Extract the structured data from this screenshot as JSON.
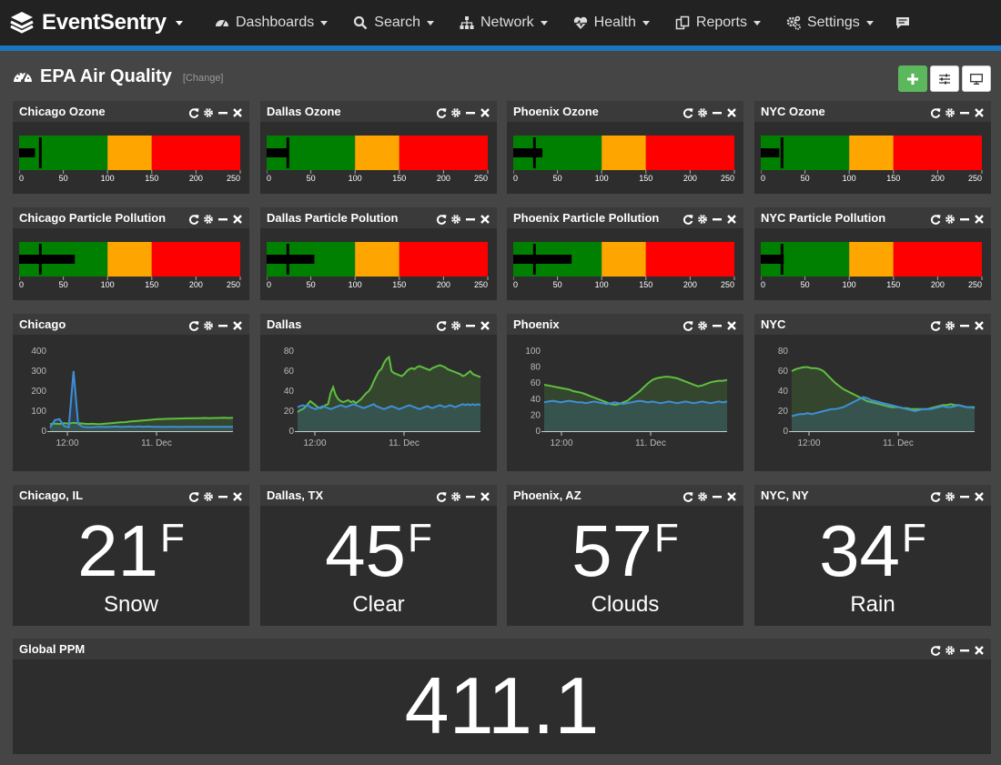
{
  "brand": {
    "name": "EventSentry"
  },
  "nav": {
    "items": [
      {
        "label": "Dashboards",
        "icon": "dashboard-icon"
      },
      {
        "label": "Search",
        "icon": "search-icon"
      },
      {
        "label": "Network",
        "icon": "network-icon"
      },
      {
        "label": "Health",
        "icon": "heartbeat-icon"
      },
      {
        "label": "Reports",
        "icon": "reports-icon"
      },
      {
        "label": "Settings",
        "icon": "settings-icon"
      }
    ],
    "chat_icon": "chat-icon"
  },
  "page": {
    "title": "EPA Air Quality",
    "change_label": "[Change]"
  },
  "colors": {
    "accent": "#1b75bc",
    "good": "#008000",
    "moderate": "#ffa500",
    "unhealthy": "#ff0000",
    "series_green": "#5fbf3f",
    "series_blue": "#3f8fd7"
  },
  "gauge_scale": {
    "ticks": [
      "0",
      "50",
      "100",
      "150",
      "200",
      "250"
    ],
    "min": 0,
    "max": 250,
    "bands": [
      [
        0,
        100,
        "good"
      ],
      [
        100,
        150,
        "moderate"
      ],
      [
        150,
        250,
        "unhealthy"
      ]
    ]
  },
  "ozone": [
    {
      "title": "Chicago Ozone",
      "value": 18,
      "target": 24
    },
    {
      "title": "Dallas Ozone",
      "value": 25,
      "target": 24
    },
    {
      "title": "Phoenix Ozone",
      "value": 33,
      "target": 24
    },
    {
      "title": "NYC Ozone",
      "value": 21,
      "target": 24
    }
  ],
  "particle": [
    {
      "title": "Chicago Particle Pollution",
      "value": 63,
      "target": 24
    },
    {
      "title": "Dallas Particle Polution",
      "value": 54,
      "target": 24
    },
    {
      "title": "Phoenix Particle Pollution",
      "value": 66,
      "target": 24
    },
    {
      "title": "NYC Particle Pollution",
      "value": 26,
      "target": 24
    }
  ],
  "charts": [
    {
      "title": "Chicago",
      "chart_data": {
        "type": "area",
        "y_ticks": [
          "0",
          "100",
          "200",
          "300",
          "400"
        ],
        "ylim": [
          0,
          400
        ],
        "x_ticks": [
          "12:00",
          "11. Dec"
        ],
        "series": [
          {
            "values": [
              35,
              38,
              36,
              40,
              38,
              42,
              40,
              38,
              36,
              37,
              35,
              36,
              38,
              40,
              42,
              44,
              45,
              48,
              50,
              52,
              54,
              56,
              58,
              60,
              60,
              62,
              62,
              63,
              63,
              64,
              64,
              65,
              65,
              66,
              65,
              66,
              66,
              67,
              66,
              67
            ]
          },
          {
            "values": [
              18,
              55,
              60,
              25,
              20,
              300,
              35,
              22,
              20,
              20,
              21,
              22,
              21,
              22,
              23,
              22,
              22,
              23,
              22,
              23,
              22,
              23,
              22,
              22,
              21,
              22,
              22,
              22,
              21,
              22,
              22,
              22,
              22,
              22,
              22,
              22,
              22,
              22,
              22,
              22
            ]
          }
        ]
      }
    },
    {
      "title": "Dallas",
      "chart_data": {
        "type": "area",
        "y_ticks": [
          "0",
          "20",
          "40",
          "60",
          "80"
        ],
        "ylim": [
          0,
          80
        ],
        "x_ticks": [
          "12:00",
          "11. Dec"
        ],
        "series": [
          {
            "values": [
              19,
              21,
              22,
              24,
              27,
              30,
              28,
              26,
              24,
              23,
              24,
              26,
              27,
              38,
              44,
              36,
              32,
              30,
              29,
              30,
              31,
              29,
              30,
              28,
              30,
              32,
              35,
              38,
              40,
              44,
              50,
              55,
              60,
              62,
              68,
              72,
              74,
              60,
              58,
              57,
              56,
              55,
              57,
              60,
              62,
              63,
              62,
              64,
              65,
              64,
              63,
              62,
              61,
              63,
              64,
              65,
              66,
              65,
              64,
              62,
              61,
              60,
              59,
              58,
              57,
              55,
              56,
              58,
              60,
              57,
              56,
              55,
              54
            ]
          },
          {
            "values": [
              24,
              25,
              26,
              25,
              26,
              24,
              23,
              22,
              23,
              24,
              25,
              24,
              23,
              22,
              23,
              24,
              25,
              26,
              25,
              24,
              25,
              26,
              27,
              26,
              25,
              24,
              23,
              24,
              25,
              26,
              27,
              25,
              24,
              23,
              22,
              23,
              24,
              25,
              24,
              23,
              22,
              23,
              24,
              25,
              26,
              25,
              24,
              23,
              22,
              23,
              24,
              25,
              24,
              23,
              24,
              25,
              26,
              25,
              24,
              25,
              26,
              25,
              24,
              25,
              26,
              27,
              26,
              27,
              26,
              27,
              26,
              27,
              26
            ]
          }
        ]
      }
    },
    {
      "title": "Phoenix",
      "chart_data": {
        "type": "area",
        "y_ticks": [
          "0",
          "20",
          "40",
          "60",
          "80",
          "100"
        ],
        "ylim": [
          0,
          100
        ],
        "x_ticks": [
          "12:00",
          "11. Dec"
        ],
        "series": [
          {
            "values": [
              58,
              57,
              56,
              55,
              54,
              53,
              52,
              50,
              49,
              48,
              46,
              44,
              42,
              40,
              38,
              36,
              34,
              33,
              34,
              36,
              38,
              42,
              46,
              50,
              55,
              60,
              64,
              66,
              67,
              68,
              68,
              67,
              66,
              64,
              62,
              60,
              58,
              56,
              57,
              59,
              61,
              62,
              63,
              63,
              64
            ]
          },
          {
            "values": [
              36,
              37,
              38,
              37,
              36,
              37,
              38,
              37,
              36,
              36,
              35,
              36,
              37,
              36,
              35,
              34,
              35,
              36,
              35,
              34,
              35,
              36,
              37,
              38,
              37,
              36,
              37,
              36,
              35,
              36,
              37,
              36,
              35,
              36,
              37,
              36,
              35,
              36,
              37,
              36,
              35,
              36,
              37,
              36,
              37
            ]
          }
        ]
      }
    },
    {
      "title": "NYC",
      "chart_data": {
        "type": "area",
        "y_ticks": [
          "0",
          "20",
          "40",
          "60",
          "80"
        ],
        "ylim": [
          0,
          80
        ],
        "x_ticks": [
          "12:00",
          "11. Dec"
        ],
        "series": [
          {
            "values": [
              60,
              62,
              63,
              64,
              64,
              63,
              63,
              62,
              60,
              56,
              52,
              48,
              45,
              42,
              40,
              38,
              36,
              34,
              32,
              30,
              29,
              28,
              27,
              26,
              25,
              24,
              24,
              24,
              23,
              23,
              22,
              22,
              22,
              22,
              22,
              23,
              24,
              25,
              26,
              26,
              27,
              26,
              26,
              25,
              24,
              24,
              24
            ]
          },
          {
            "values": [
              15,
              16,
              17,
              17,
              18,
              17,
              18,
              19,
              20,
              21,
              22,
              22,
              23,
              24,
              26,
              28,
              30,
              32,
              34,
              33,
              31,
              30,
              29,
              28,
              27,
              26,
              25,
              24,
              23,
              22,
              21,
              20,
              21,
              22,
              22,
              22,
              23,
              24,
              25,
              24,
              24,
              25,
              26,
              25,
              24,
              24,
              23
            ]
          }
        ]
      }
    }
  ],
  "weather": [
    {
      "title": "Chicago, IL",
      "temp": "21",
      "unit": "F",
      "condition": "Snow"
    },
    {
      "title": "Dallas, TX",
      "temp": "45",
      "unit": "F",
      "condition": "Clear"
    },
    {
      "title": "Phoenix, AZ",
      "temp": "57",
      "unit": "F",
      "condition": "Clouds"
    },
    {
      "title": "NYC, NY",
      "temp": "34",
      "unit": "F",
      "condition": "Rain"
    }
  ],
  "global_ppm": {
    "title": "Global PPM",
    "value": "411.1"
  }
}
